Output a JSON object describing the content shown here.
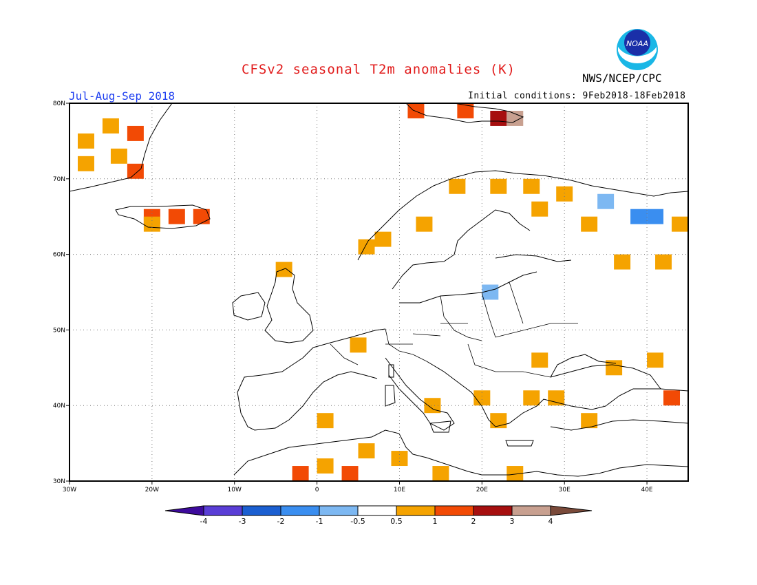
{
  "header": {
    "title": "CFSv2 seasonal T2m anomalies (K)",
    "agency": "NWS/NCEP/CPC",
    "season": "Jul-Aug-Sep 2018",
    "initial_conditions": "Initial conditions: 9Feb2018-18Feb2018",
    "logo_text": "NOAA"
  },
  "colors": {
    "title": "#e11b1b",
    "season": "#1f3ff0",
    "bins": [
      "#3d0a9c",
      "#5a3ed6",
      "#1b5fd1",
      "#3a8ef0",
      "#7db8f2",
      "#ffffff",
      "#f5a300",
      "#f24a05",
      "#a60f0f",
      "#c8a090",
      "#7a4a3a"
    ]
  },
  "map": {
    "lat_labels": [
      "80N",
      "70N",
      "60N",
      "50N",
      "40N",
      "30N"
    ],
    "lon_labels": [
      "30W",
      "20W",
      "10W",
      "0",
      "10E",
      "20E",
      "30E",
      "40E"
    ]
  },
  "legend": {
    "tick_labels": [
      "-4",
      "-3",
      "-2",
      "-1",
      "-0.5",
      "0.5",
      "1",
      "2",
      "3",
      "4"
    ]
  },
  "anomaly_cells": [
    {
      "lon": -28,
      "lat": 75,
      "bin": 6
    },
    {
      "lon": -25,
      "lat": 77,
      "bin": 6
    },
    {
      "lon": -28,
      "lat": 72,
      "bin": 6
    },
    {
      "lon": -24,
      "lat": 73,
      "bin": 6
    },
    {
      "lon": -22,
      "lat": 71,
      "bin": 7
    },
    {
      "lon": -22,
      "lat": 76,
      "bin": 7
    },
    {
      "lon": -20,
      "lat": 65,
      "bin": 7
    },
    {
      "lon": -17,
      "lat": 65,
      "bin": 7
    },
    {
      "lon": -14,
      "lat": 65,
      "bin": 7
    },
    {
      "lon": -20,
      "lat": 64,
      "bin": 6
    },
    {
      "lon": 12,
      "lat": 79,
      "bin": 7
    },
    {
      "lon": 18,
      "lat": 79,
      "bin": 7
    },
    {
      "lon": 22,
      "lat": 78,
      "bin": 8
    },
    {
      "lon": 24,
      "lat": 78,
      "bin": 9
    },
    {
      "lon": 17,
      "lat": 69,
      "bin": 6
    },
    {
      "lon": 22,
      "lat": 69,
      "bin": 6
    },
    {
      "lon": 26,
      "lat": 69,
      "bin": 6
    },
    {
      "lon": 30,
      "lat": 68,
      "bin": 6
    },
    {
      "lon": 27,
      "lat": 66,
      "bin": 6
    },
    {
      "lon": 13,
      "lat": 64,
      "bin": 6
    },
    {
      "lon": 8,
      "lat": 62,
      "bin": 6
    },
    {
      "lon": 6,
      "lat": 61,
      "bin": 6
    },
    {
      "lon": 33,
      "lat": 64,
      "bin": 6
    },
    {
      "lon": 44,
      "lat": 64,
      "bin": 6
    },
    {
      "lon": 42,
      "lat": 59,
      "bin": 6
    },
    {
      "lon": 37,
      "lat": 59,
      "bin": 6
    },
    {
      "lon": -4,
      "lat": 58,
      "bin": 6
    },
    {
      "lon": 35,
      "lat": 67,
      "bin": 4
    },
    {
      "lon": 39,
      "lat": 65,
      "bin": 3
    },
    {
      "lon": 41,
      "lat": 65,
      "bin": 3
    },
    {
      "lon": 21,
      "lat": 55,
      "bin": 4
    },
    {
      "lon": 1,
      "lat": 38,
      "bin": 6
    },
    {
      "lon": 6,
      "lat": 34,
      "bin": 6
    },
    {
      "lon": 1,
      "lat": 32,
      "bin": 6
    },
    {
      "lon": 10,
      "lat": 33,
      "bin": 6
    },
    {
      "lon": 15,
      "lat": 31,
      "bin": 6
    },
    {
      "lon": -2,
      "lat": 31,
      "bin": 7
    },
    {
      "lon": 4,
      "lat": 31,
      "bin": 7
    },
    {
      "lon": 20,
      "lat": 41,
      "bin": 6
    },
    {
      "lon": 22,
      "lat": 38,
      "bin": 6
    },
    {
      "lon": 26,
      "lat": 41,
      "bin": 6
    },
    {
      "lon": 29,
      "lat": 41,
      "bin": 6
    },
    {
      "lon": 33,
      "lat": 38,
      "bin": 6
    },
    {
      "lon": 43,
      "lat": 41,
      "bin": 7
    },
    {
      "lon": 36,
      "lat": 45,
      "bin": 6
    },
    {
      "lon": 27,
      "lat": 46,
      "bin": 6
    },
    {
      "lon": 41,
      "lat": 46,
      "bin": 6
    },
    {
      "lon": 14,
      "lat": 40,
      "bin": 6
    },
    {
      "lon": 24,
      "lat": 31,
      "bin": 6
    },
    {
      "lon": 5,
      "lat": 48,
      "bin": 6
    }
  ]
}
